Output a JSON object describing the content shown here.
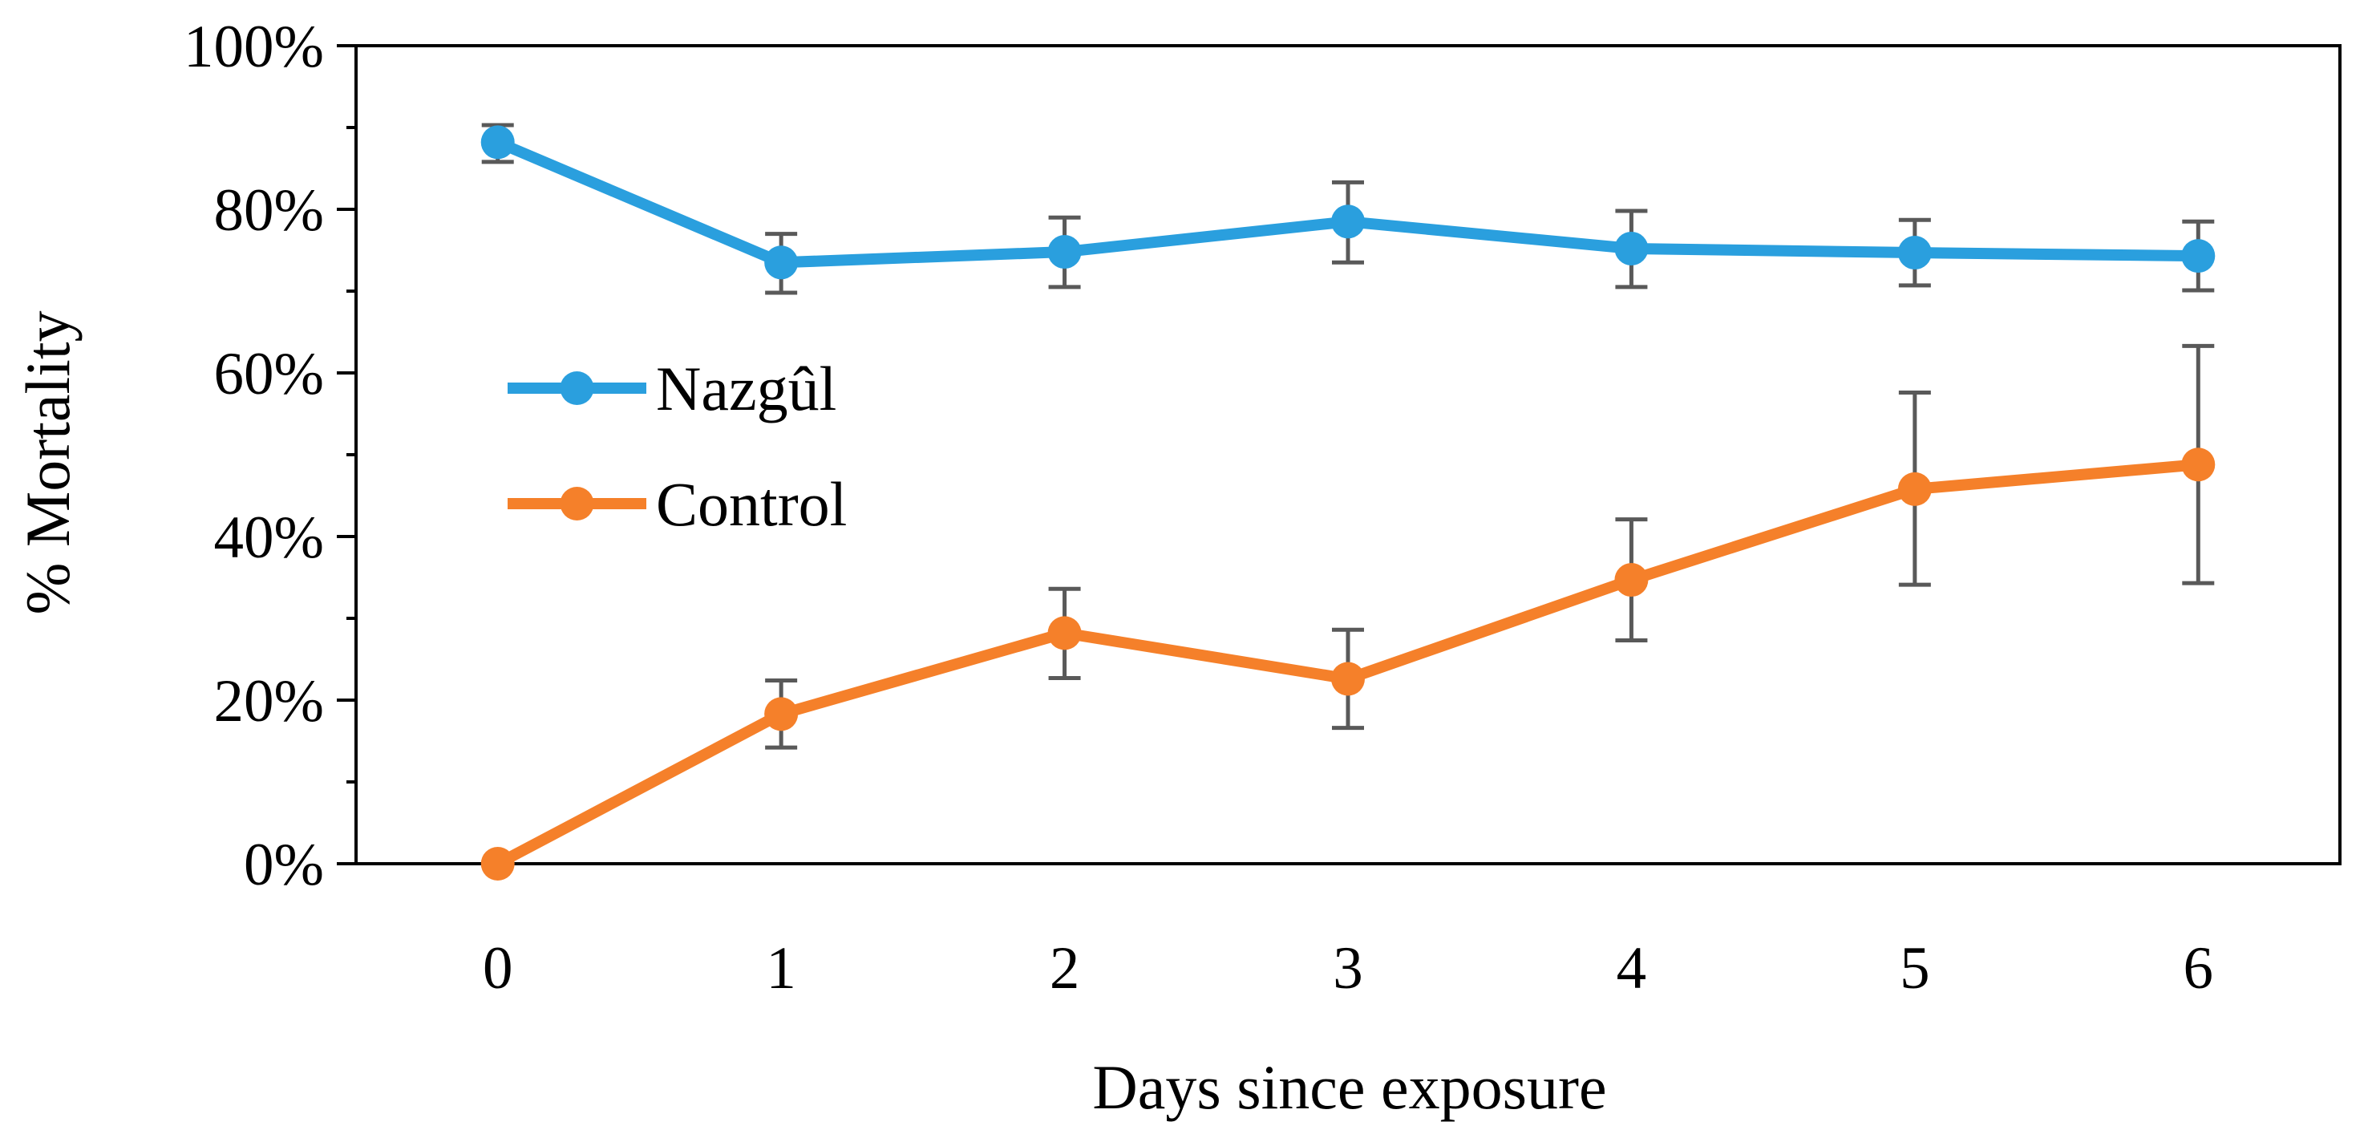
{
  "chart_data": {
    "type": "line",
    "title": "",
    "xlabel": "Days since exposure",
    "ylabel": "% Mortality",
    "x": [
      0,
      1,
      2,
      3,
      4,
      5,
      6
    ],
    "x_tick_labels": [
      "0",
      "1",
      "2",
      "3",
      "4",
      "5",
      "6"
    ],
    "ylim": [
      0,
      100
    ],
    "y_tick_labels": [
      "0%",
      "20%",
      "40%",
      "60%",
      "80%",
      "100%"
    ],
    "y_ticks": [
      0,
      20,
      40,
      60,
      80,
      100
    ],
    "grid": false,
    "legend_position": "center-left",
    "series": [
      {
        "name": "Nazgûl",
        "color": "#2a9fde",
        "values": [
          88.2,
          73.5,
          74.8,
          78.5,
          75.2,
          74.7,
          74.3
        ],
        "error_low": [
          85.8,
          69.8,
          70.5,
          73.5,
          70.5,
          70.7,
          70.1
        ],
        "error_high": [
          90.3,
          77.0,
          79.0,
          83.3,
          79.8,
          78.7,
          78.5
        ]
      },
      {
        "name": "Control",
        "color": "#f5802a",
        "values": [
          0,
          18.3,
          28.2,
          22.6,
          34.7,
          45.8,
          48.8
        ],
        "error_low": [
          0,
          14.2,
          22.7,
          16.6,
          27.3,
          34.1,
          34.3
        ],
        "error_high": [
          0,
          22.4,
          33.6,
          28.6,
          42.1,
          57.6,
          63.3
        ]
      }
    ],
    "error_bar_color": "#595959"
  }
}
